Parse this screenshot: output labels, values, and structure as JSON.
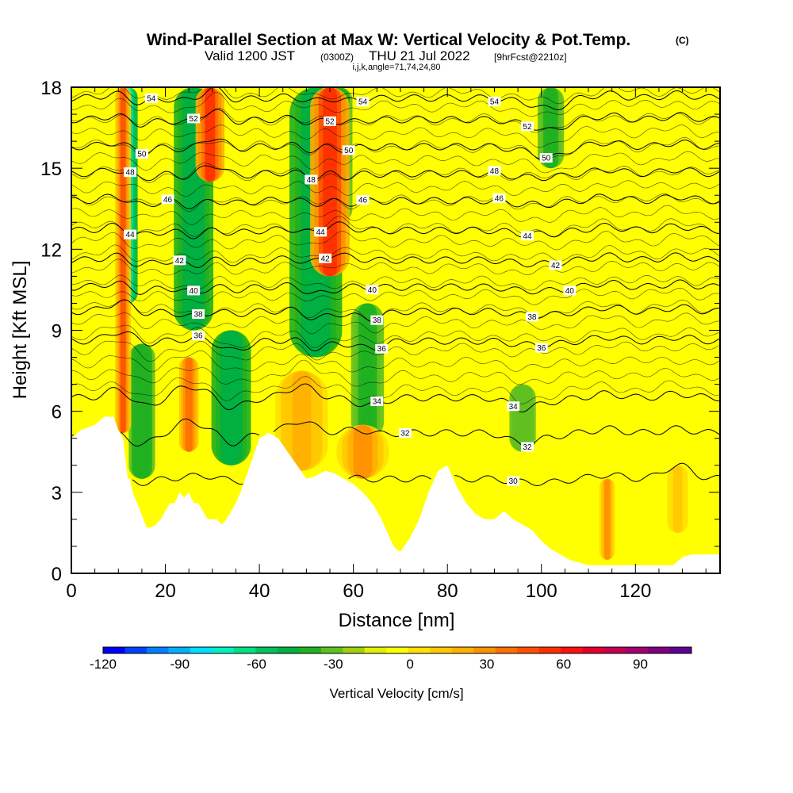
{
  "title": {
    "main": "Wind-Parallel Section at Max W: Vertical Velocity & Pot.Temp.",
    "copyright": "(C)",
    "valid_prefix": "Valid 1200 JST",
    "utc": "(0300Z)",
    "date": "THU 21 Jul 2022",
    "forecast": "[9hrFcst@2210z]",
    "params": "i,j,k,angle=71,74,24,80"
  },
  "colors": {
    "background": "#ffff00",
    "terrain": "#ffffff",
    "contour": "#000000"
  },
  "chart_data": {
    "type": "heatmap",
    "xlabel": "Distance [nm]",
    "ylabel": "Height [Kft MSL]",
    "xlim": [
      0,
      138
    ],
    "ylim": [
      0,
      18
    ],
    "x_ticks": [
      0,
      20,
      40,
      60,
      80,
      100,
      120
    ],
    "y_ticks": [
      0,
      3,
      6,
      9,
      12,
      15,
      18
    ],
    "grid": false,
    "fill_variable": "Vertical Velocity [cm/s]",
    "colorbar": {
      "label": "Vertical Velocity [cm/s]",
      "placement": "bottom",
      "range": [
        -120,
        110
      ],
      "step": 10,
      "tick_values": [
        -120,
        -90,
        -60,
        -30,
        0,
        30,
        60,
        90
      ],
      "tick_labels": [
        "-120",
        "-90",
        "-60",
        "-30",
        "0",
        "30",
        "60",
        "90"
      ],
      "colors": [
        "#0000ff",
        "#0040ff",
        "#0080ff",
        "#00b0ff",
        "#00e0ff",
        "#00f0c0",
        "#00e080",
        "#00c060",
        "#00b040",
        "#20b020",
        "#60c020",
        "#a0d010",
        "#e0f000",
        "#ffff00",
        "#ffe000",
        "#ffc800",
        "#ffb000",
        "#ff9000",
        "#ff7000",
        "#ff5000",
        "#ff3000",
        "#ff1010",
        "#e00030",
        "#c00050",
        "#a00070",
        "#800080",
        "#600090"
      ]
    },
    "terrain_profile": {
      "x": [
        0,
        2,
        5,
        7,
        9,
        10,
        11,
        12,
        12.5,
        13,
        14,
        16,
        17,
        18,
        19,
        20,
        21,
        22,
        23,
        24,
        25,
        26,
        27,
        28,
        29,
        30,
        31,
        32,
        33,
        34,
        35,
        36,
        37,
        38,
        39,
        40,
        42,
        44,
        46,
        48,
        50,
        52,
        54,
        56,
        58,
        60,
        62,
        64,
        66,
        67,
        68,
        69,
        70,
        72,
        74,
        76,
        78,
        80,
        82,
        84,
        86,
        88,
        90,
        92,
        94,
        96,
        98,
        100,
        102,
        104,
        106,
        108,
        110,
        112,
        114,
        116,
        118,
        120,
        124,
        128,
        130,
        132,
        134,
        136,
        138
      ],
      "height": [
        5.0,
        5.3,
        5.5,
        5.8,
        5.8,
        5.3,
        5.0,
        3.5,
        3.5,
        3.0,
        2.6,
        1.7,
        1.7,
        1.8,
        2.0,
        2.3,
        2.6,
        2.6,
        3.0,
        2.8,
        3.0,
        2.6,
        2.6,
        2.3,
        2.0,
        2.0,
        2.0,
        1.8,
        2.0,
        2.3,
        2.6,
        3.0,
        3.5,
        4.0,
        4.5,
        5.0,
        5.2,
        5.0,
        4.5,
        4.0,
        3.5,
        3.6,
        3.8,
        3.7,
        3.5,
        3.3,
        3.0,
        2.6,
        2.0,
        1.6,
        1.2,
        0.9,
        0.8,
        1.3,
        2.0,
        3.0,
        3.8,
        4.0,
        3.2,
        2.6,
        2.2,
        2.0,
        2.0,
        2.3,
        2.0,
        1.8,
        1.6,
        1.2,
        0.9,
        0.7,
        0.5,
        0.4,
        0.3,
        0.3,
        0.3,
        0.3,
        0.3,
        0.3,
        0.3,
        0.3,
        0.6,
        0.7,
        0.7,
        0.7,
        0.7
      ]
    },
    "updraft_columns": [
      {
        "x": 11,
        "w": 1.2,
        "y0": 5.2,
        "y1": 18,
        "value": 70
      },
      {
        "x": 25,
        "w": 1.5,
        "y0": 4.5,
        "y1": 8.0,
        "value": 60
      },
      {
        "x": 29.5,
        "w": 2.2,
        "y0": 14.5,
        "y1": 18,
        "value": 80
      },
      {
        "x": 55,
        "w": 3.0,
        "y0": 11.0,
        "y1": 18,
        "value": 85
      },
      {
        "x": 49,
        "w": 4.0,
        "y0": 3.8,
        "y1": 7.5,
        "value": 45
      },
      {
        "x": 62,
        "w": 4.0,
        "y0": 3.5,
        "y1": 5.5,
        "value": 50
      },
      {
        "x": 114,
        "w": 1.2,
        "y0": 0.5,
        "y1": 3.5,
        "value": 55
      },
      {
        "x": 129,
        "w": 2.0,
        "y0": 1.5,
        "y1": 4.0,
        "value": 35
      }
    ],
    "downdraft_columns": [
      {
        "x": 12,
        "w": 1.5,
        "y0": 10.0,
        "y1": 18,
        "value": -70
      },
      {
        "x": 15,
        "w": 2.0,
        "y0": 3.5,
        "y1": 8.5,
        "value": -30
      },
      {
        "x": 26,
        "w": 3.0,
        "y0": 9.0,
        "y1": 18,
        "value": -40
      },
      {
        "x": 34,
        "w": 3.0,
        "y0": 4.0,
        "y1": 9.0,
        "value": -40
      },
      {
        "x": 52,
        "w": 4.0,
        "y0": 8.0,
        "y1": 18,
        "value": -40
      },
      {
        "x": 57,
        "w": 2.0,
        "y0": 13.0,
        "y1": 18,
        "value": -30
      },
      {
        "x": 63,
        "w": 2.5,
        "y0": 5.0,
        "y1": 10.0,
        "value": -25
      },
      {
        "x": 102,
        "w": 2.0,
        "y0": 15.0,
        "y1": 18,
        "value": -25
      },
      {
        "x": 96,
        "w": 2.0,
        "y0": 4.5,
        "y1": 7.0,
        "value": -20
      }
    ],
    "pot_temp_contours": [
      {
        "value": 30,
        "label": "30",
        "height": 3.5,
        "label_x": 94
      },
      {
        "value": 32,
        "label": "32",
        "height": 5.2,
        "label_x": 71
      },
      {
        "value": 32,
        "label": "32",
        "height": 5.2,
        "label_x": 97
      },
      {
        "value": 34,
        "label": "34",
        "height": 6.5,
        "label_x": 65
      },
      {
        "value": 34,
        "label": "34",
        "height": 6.5,
        "label_x": 94
      },
      {
        "value": 36,
        "label": "36",
        "height": 8.6,
        "label_x": 27
      },
      {
        "value": 36,
        "label": "36",
        "height": 8.6,
        "label_x": 66
      },
      {
        "value": 36,
        "label": "36",
        "height": 8.6,
        "label_x": 100
      },
      {
        "value": 38,
        "label": "38",
        "height": 9.7,
        "label_x": 27
      },
      {
        "value": 38,
        "label": "38",
        "height": 9.7,
        "label_x": 65
      },
      {
        "value": 38,
        "label": "38",
        "height": 9.7,
        "label_x": 98
      },
      {
        "value": 40,
        "label": "40",
        "height": 10.6,
        "label_x": 26
      },
      {
        "value": 40,
        "label": "40",
        "height": 10.6,
        "label_x": 64
      },
      {
        "value": 40,
        "label": "40",
        "height": 10.6,
        "label_x": 106
      },
      {
        "value": 42,
        "label": "42",
        "height": 11.6,
        "label_x": 23
      },
      {
        "value": 42,
        "label": "42",
        "height": 11.6,
        "label_x": 54
      },
      {
        "value": 42,
        "label": "42",
        "height": 11.6,
        "label_x": 103
      },
      {
        "value": 44,
        "label": "44",
        "height": 12.7,
        "label_x": 12.5
      },
      {
        "value": 44,
        "label": "44",
        "height": 12.7,
        "label_x": 53
      },
      {
        "value": 44,
        "label": "44",
        "height": 12.7,
        "label_x": 97
      },
      {
        "value": 46,
        "label": "46",
        "height": 13.8,
        "label_x": 20.5
      },
      {
        "value": 46,
        "label": "46",
        "height": 13.8,
        "label_x": 62
      },
      {
        "value": 46,
        "label": "46",
        "height": 13.8,
        "label_x": 91
      },
      {
        "value": 48,
        "label": "48",
        "height": 14.8,
        "label_x": 12.5
      },
      {
        "value": 48,
        "label": "48",
        "height": 14.8,
        "label_x": 51
      },
      {
        "value": 48,
        "label": "48",
        "height": 14.8,
        "label_x": 90
      },
      {
        "value": 50,
        "label": "50",
        "height": 15.8,
        "label_x": 15
      },
      {
        "value": 50,
        "label": "50",
        "height": 15.8,
        "label_x": 59
      },
      {
        "value": 50,
        "label": "50",
        "height": 15.8,
        "label_x": 101
      },
      {
        "value": 52,
        "label": "52",
        "height": 16.8,
        "label_x": 26
      },
      {
        "value": 52,
        "label": "52",
        "height": 16.8,
        "label_x": 55
      },
      {
        "value": 52,
        "label": "52",
        "height": 16.8,
        "label_x": 97
      },
      {
        "value": 54,
        "label": "54",
        "height": 17.6,
        "label_x": 17
      },
      {
        "value": 54,
        "label": "54",
        "height": 17.6,
        "label_x": 62
      },
      {
        "value": 54,
        "label": "54",
        "height": 17.6,
        "label_x": 90
      }
    ]
  }
}
